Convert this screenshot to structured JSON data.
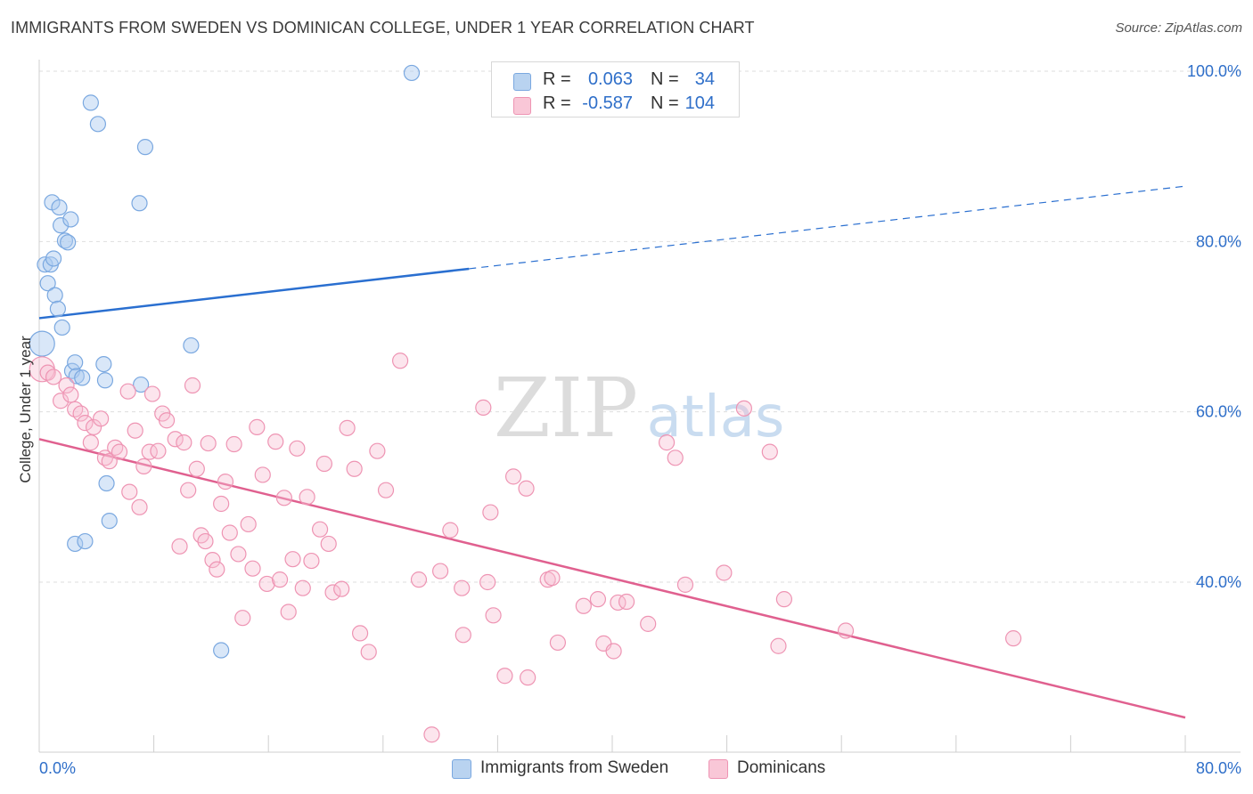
{
  "title": "IMMIGRANTS FROM SWEDEN VS DOMINICAN COLLEGE, UNDER 1 YEAR CORRELATION CHART",
  "source": "Source: ZipAtlas.com",
  "watermark": {
    "zip": "ZIP",
    "atlas": "atlas"
  },
  "legend": {
    "r_label": "R =",
    "n_label": "N =",
    "rows": [
      {
        "r": "0.063",
        "n": "34",
        "color": "#b9d3f0",
        "border": "#7aa8e0"
      },
      {
        "r": "-0.587",
        "n": "104",
        "color": "#f9c7d7",
        "border": "#ee94b3"
      }
    ]
  },
  "bottom_legend": [
    "Immigrants from Sweden",
    "Dominicans"
  ],
  "chart_data": {
    "type": "scatter",
    "ylabel": "College, Under 1 year",
    "xlabel": "",
    "xlim": [
      0,
      80
    ],
    "ylim": [
      20,
      100
    ],
    "x_ticks": [
      "0.0%",
      "80.0%"
    ],
    "y_ticks": [
      "40.0%",
      "60.0%",
      "80.0%",
      "100.0%"
    ],
    "y_tick_values": [
      40,
      60,
      80,
      100
    ],
    "grid": true,
    "series": [
      {
        "name": "Immigrants from Sweden",
        "color": "#7aa8e0",
        "fill": "rgba(170,202,240,0.45)",
        "trend": {
          "x0": 0,
          "y0": 71.0,
          "x1": 30,
          "y1": 76.8,
          "dash_to_x": 80,
          "dash_to_y": 86.5,
          "color": "#2a6fd0"
        },
        "points": [
          [
            0.2,
            68.0
          ],
          [
            0.4,
            77.3
          ],
          [
            0.6,
            75.1
          ],
          [
            0.8,
            77.3
          ],
          [
            0.9,
            84.6
          ],
          [
            1.0,
            78.0
          ],
          [
            1.1,
            73.7
          ],
          [
            1.3,
            72.1
          ],
          [
            1.4,
            84.0
          ],
          [
            1.5,
            81.9
          ],
          [
            1.6,
            69.9
          ],
          [
            1.8,
            80.1
          ],
          [
            2.0,
            79.9
          ],
          [
            2.2,
            82.6
          ],
          [
            2.3,
            64.8
          ],
          [
            2.5,
            44.5
          ],
          [
            2.5,
            65.8
          ],
          [
            2.6,
            64.2
          ],
          [
            3.0,
            64.0
          ],
          [
            3.2,
            44.8
          ],
          [
            3.6,
            96.3
          ],
          [
            4.1,
            93.8
          ],
          [
            4.5,
            65.6
          ],
          [
            4.6,
            63.7
          ],
          [
            4.7,
            51.6
          ],
          [
            4.9,
            47.2
          ],
          [
            7.0,
            84.5
          ],
          [
            7.1,
            63.2
          ],
          [
            7.4,
            91.1
          ],
          [
            10.6,
            67.8
          ],
          [
            12.7,
            32.0
          ],
          [
            26.0,
            99.8
          ]
        ]
      },
      {
        "name": "Dominicans",
        "color": "#ee94b3",
        "fill": "rgba(248,190,210,0.40)",
        "trend": {
          "x0": 0,
          "y0": 56.8,
          "x1": 80,
          "y1": 24.1,
          "color": "#e0608f"
        },
        "points": [
          [
            0.2,
            65.0
          ],
          [
            0.6,
            64.6
          ],
          [
            1.0,
            64.1
          ],
          [
            1.5,
            61.3
          ],
          [
            1.9,
            63.1
          ],
          [
            2.2,
            62.0
          ],
          [
            2.5,
            60.3
          ],
          [
            2.9,
            59.8
          ],
          [
            3.2,
            58.7
          ],
          [
            3.6,
            56.4
          ],
          [
            3.8,
            58.2
          ],
          [
            4.3,
            59.2
          ],
          [
            4.6,
            54.6
          ],
          [
            4.9,
            54.2
          ],
          [
            5.3,
            55.8
          ],
          [
            5.6,
            55.3
          ],
          [
            6.2,
            62.4
          ],
          [
            6.3,
            50.6
          ],
          [
            6.7,
            57.8
          ],
          [
            7.0,
            48.8
          ],
          [
            7.3,
            53.6
          ],
          [
            7.7,
            55.3
          ],
          [
            7.9,
            62.1
          ],
          [
            8.3,
            55.4
          ],
          [
            8.6,
            59.8
          ],
          [
            8.9,
            59.0
          ],
          [
            9.5,
            56.8
          ],
          [
            9.8,
            44.2
          ],
          [
            10.1,
            56.4
          ],
          [
            10.4,
            50.8
          ],
          [
            10.7,
            63.1
          ],
          [
            11.0,
            53.3
          ],
          [
            11.3,
            45.5
          ],
          [
            11.6,
            44.8
          ],
          [
            11.8,
            56.3
          ],
          [
            12.1,
            42.6
          ],
          [
            12.4,
            41.5
          ],
          [
            12.7,
            49.2
          ],
          [
            13.0,
            51.8
          ],
          [
            13.3,
            45.8
          ],
          [
            13.6,
            56.2
          ],
          [
            13.9,
            43.3
          ],
          [
            14.2,
            35.8
          ],
          [
            14.6,
            46.8
          ],
          [
            14.9,
            41.6
          ],
          [
            15.2,
            58.2
          ],
          [
            15.6,
            52.6
          ],
          [
            15.9,
            39.8
          ],
          [
            16.5,
            56.5
          ],
          [
            16.8,
            40.3
          ],
          [
            17.1,
            49.9
          ],
          [
            17.4,
            36.5
          ],
          [
            17.7,
            42.7
          ],
          [
            18.0,
            55.7
          ],
          [
            18.4,
            39.3
          ],
          [
            18.7,
            50.0
          ],
          [
            19.0,
            42.5
          ],
          [
            19.6,
            46.2
          ],
          [
            19.9,
            53.9
          ],
          [
            20.2,
            44.5
          ],
          [
            20.5,
            38.8
          ],
          [
            21.1,
            39.2
          ],
          [
            21.5,
            58.1
          ],
          [
            22.0,
            53.3
          ],
          [
            22.4,
            34.0
          ],
          [
            23.0,
            31.8
          ],
          [
            23.6,
            55.4
          ],
          [
            24.2,
            50.8
          ],
          [
            25.2,
            66.0
          ],
          [
            26.5,
            40.3
          ],
          [
            27.4,
            22.1
          ],
          [
            28.0,
            41.3
          ],
          [
            28.7,
            46.1
          ],
          [
            29.5,
            39.3
          ],
          [
            29.6,
            33.8
          ],
          [
            31.0,
            60.5
          ],
          [
            31.3,
            40.0
          ],
          [
            31.5,
            48.2
          ],
          [
            31.7,
            36.1
          ],
          [
            32.5,
            29.0
          ],
          [
            33.1,
            52.4
          ],
          [
            34.0,
            51.0
          ],
          [
            34.1,
            28.8
          ],
          [
            35.5,
            40.3
          ],
          [
            35.8,
            40.5
          ],
          [
            36.2,
            32.9
          ],
          [
            38.0,
            37.2
          ],
          [
            39.0,
            38.0
          ],
          [
            39.4,
            32.8
          ],
          [
            40.1,
            31.9
          ],
          [
            40.4,
            37.6
          ],
          [
            41.0,
            37.7
          ],
          [
            42.5,
            35.1
          ],
          [
            43.8,
            56.4
          ],
          [
            44.4,
            54.6
          ],
          [
            45.1,
            39.7
          ],
          [
            47.8,
            41.1
          ],
          [
            49.2,
            60.4
          ],
          [
            51.0,
            55.3
          ],
          [
            51.6,
            32.5
          ],
          [
            52.0,
            38.0
          ],
          [
            56.3,
            34.3
          ],
          [
            68.0,
            33.4
          ]
        ]
      }
    ]
  }
}
